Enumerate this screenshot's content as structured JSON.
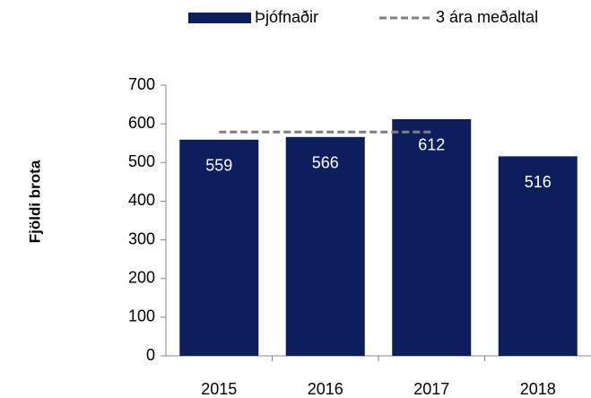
{
  "chart_data": {
    "type": "bar",
    "categories": [
      "2015",
      "2016",
      "2017",
      "2018"
    ],
    "series": [
      {
        "name": "Þjófnaðir",
        "color": "#0c1f5c",
        "values": [
          559,
          566,
          612,
          516
        ],
        "type": "bar"
      },
      {
        "name": "3 ára meðaltal",
        "color": "#7f7f7f",
        "values": [
          579,
          579,
          579,
          null
        ],
        "type": "line",
        "dashed": true
      }
    ],
    "ylabel": "Fjöldi brota",
    "ylim": [
      0,
      700
    ],
    "yticks": [
      0,
      100,
      200,
      300,
      400,
      500,
      600,
      700
    ],
    "legend": "top"
  }
}
